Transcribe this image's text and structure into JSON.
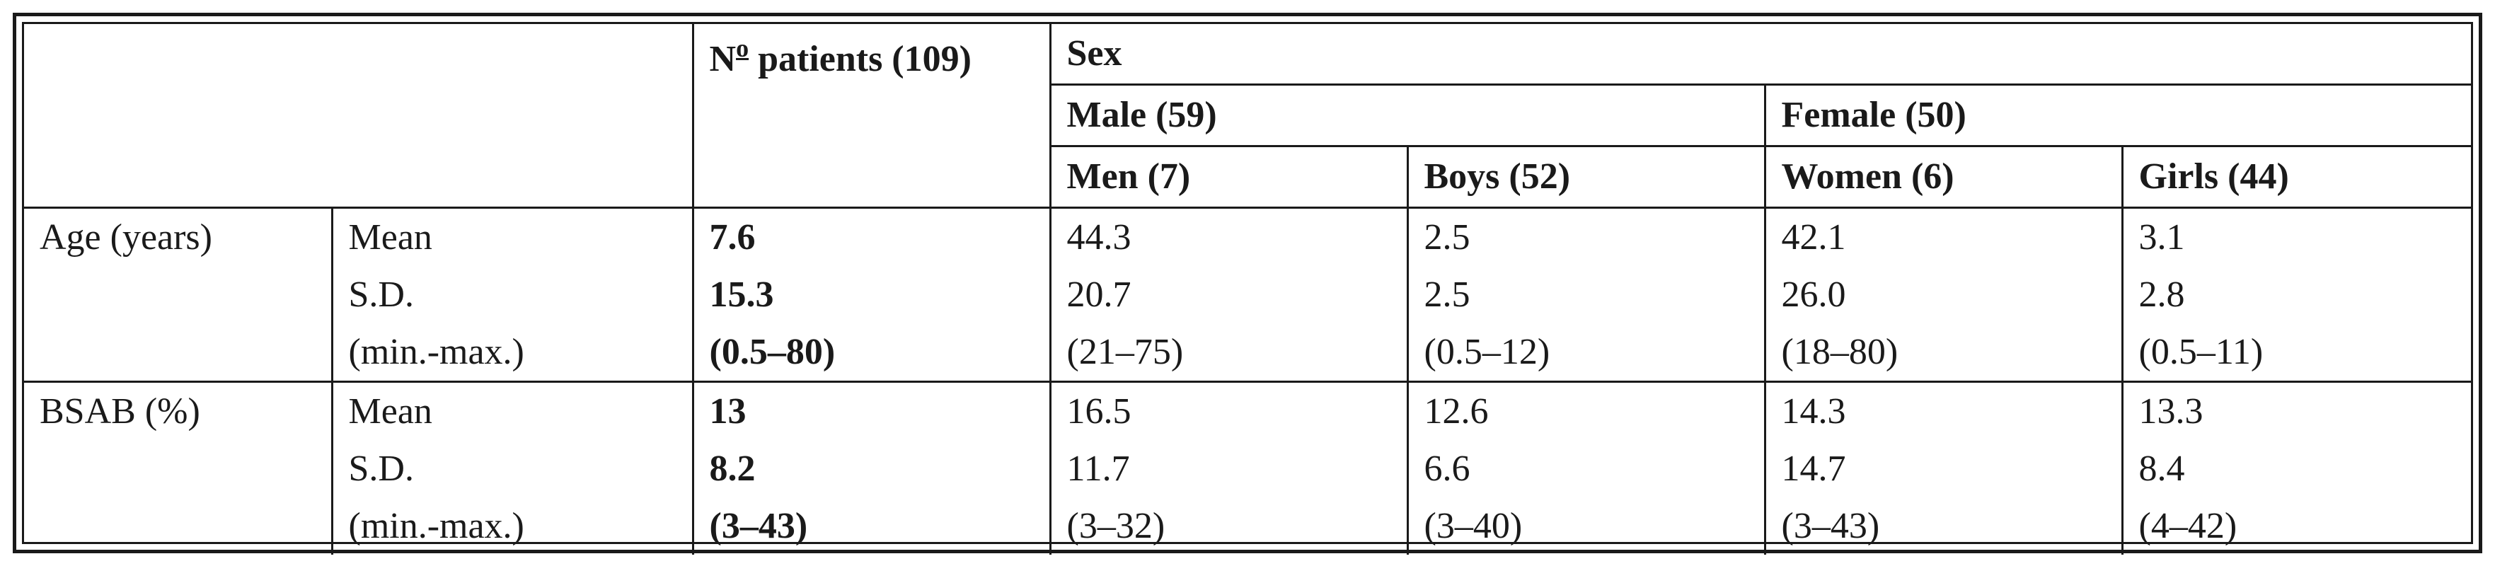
{
  "header": {
    "patients_prefix": "N",
    "patients_sup": "o",
    "patients_label": " patients (109)",
    "sex": "Sex",
    "male": "Male (59)",
    "female": "Female (50)",
    "men": "Men (7)",
    "boys": "Boys (52)",
    "women": "Women (6)",
    "girls": "Girls (44)"
  },
  "rows": [
    {
      "group": "Age (years)",
      "stat": "Mean",
      "total": "7.6",
      "men": "44.3",
      "boys": "2.5",
      "women": "42.1",
      "girls": "3.1"
    },
    {
      "group": "",
      "stat": "S.D.",
      "total": "15.3",
      "men": "20.7",
      "boys": "2.5",
      "women": "26.0",
      "girls": "2.8"
    },
    {
      "group": "",
      "stat": "(min.-max.)",
      "total": "(0.5–80)",
      "men": "(21–75)",
      "boys": "(0.5–12)",
      "women": "(18–80)",
      "girls": "(0.5–11)"
    },
    {
      "group": "BSAB (%)",
      "stat": "Mean",
      "total": "13",
      "men": "16.5",
      "boys": "12.6",
      "women": "14.3",
      "girls": "13.3"
    },
    {
      "group": "",
      "stat": "S.D.",
      "total": "8.2",
      "men": "11.7",
      "boys": "6.6",
      "women": "14.7",
      "girls": "8.4"
    },
    {
      "group": "",
      "stat": "(min.-max.)",
      "total": "(3–43)",
      "men": "(3–32)",
      "boys": "(3–40)",
      "women": "(3–43)",
      "girls": "(4–42)"
    }
  ]
}
